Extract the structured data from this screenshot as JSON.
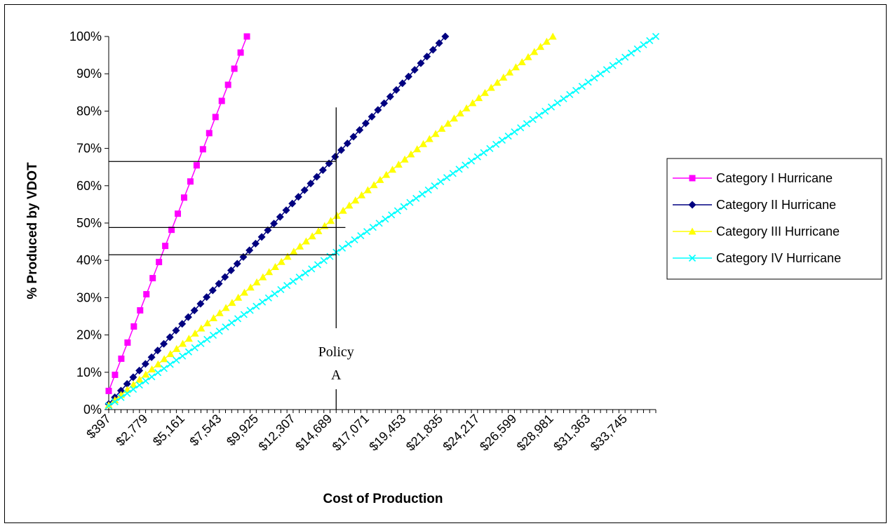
{
  "chart_data": {
    "type": "line",
    "title": "",
    "xlabel": "Cost of Production",
    "ylabel": "% Produced by VDOT",
    "xlim": [
      397,
      35731
    ],
    "ylim": [
      0,
      100
    ],
    "y_ticks": [
      "0%",
      "10%",
      "20%",
      "30%",
      "40%",
      "50%",
      "60%",
      "70%",
      "80%",
      "90%",
      "100%"
    ],
    "x_tick_labels": [
      "$397",
      "$2,779",
      "$5,161",
      "$7,543",
      "$9,925",
      "$12,307",
      "$14,689",
      "$17,071",
      "$19,453",
      "$21,835",
      "$24,217",
      "$26,599",
      "$28,981",
      "$31,363",
      "$33,745"
    ],
    "x_tick_values": [
      397,
      2779,
      5161,
      7543,
      9925,
      12307,
      14689,
      17071,
      19453,
      21835,
      24217,
      26599,
      28981,
      31363,
      33745
    ],
    "grid": false,
    "legend_position": "right",
    "series": [
      {
        "name": "Category I Hurricane",
        "color": "#ff00ff",
        "marker": "square",
        "x_start": 397,
        "x_end": 9322,
        "y_start": 5,
        "y_end": 100
      },
      {
        "name": "Category II Hurricane",
        "color": "#000080",
        "marker": "diamond",
        "x_start": 397,
        "x_end": 22133,
        "y_start": 1.5,
        "y_end": 100
      },
      {
        "name": "Category III Hurricane",
        "color": "#ffff00",
        "marker": "triangle",
        "x_start": 397,
        "x_end": 29081,
        "y_start": 1.2,
        "y_end": 100
      },
      {
        "name": "Category IV Hurricane",
        "color": "#00ffff",
        "marker": "x",
        "x_start": 397,
        "x_end": 35731,
        "y_start": 1,
        "y_end": 100
      }
    ],
    "annotations": {
      "policy_line_x": 15086,
      "policy_line_y_top": 81,
      "policy_label_lines": [
        "Policy",
        "A"
      ],
      "horizontal_reference_lines": [
        {
          "y": 66.5,
          "x_end": 15086
        },
        {
          "y": 48.8,
          "x_end": 15682
        },
        {
          "y": 41.5,
          "x_end": 15086
        }
      ]
    }
  }
}
